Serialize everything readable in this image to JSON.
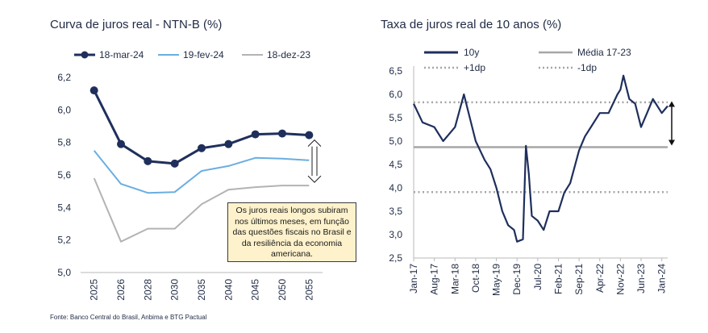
{
  "chart_data": [
    {
      "type": "line",
      "title": "Curva de juros real - NTN-B (%)",
      "categories": [
        "2025",
        "2026",
        "2028",
        "2030",
        "2035",
        "2040",
        "2045",
        "2050",
        "2055"
      ],
      "series": [
        {
          "name": "18-mar-24",
          "color": "#1f2f5c",
          "values": [
            6.12,
            5.79,
            5.685,
            5.67,
            5.765,
            5.79,
            5.85,
            5.855,
            5.845
          ]
        },
        {
          "name": "19-fev-24",
          "color": "#6aaee0",
          "values": [
            5.75,
            5.545,
            5.49,
            5.495,
            5.625,
            5.655,
            5.705,
            5.7,
            5.69
          ]
        },
        {
          "name": "18-dez-23",
          "color": "#b3b3b3",
          "values": [
            5.58,
            5.19,
            5.27,
            5.27,
            5.42,
            5.51,
            5.525,
            5.535,
            5.535
          ]
        }
      ],
      "ylim": [
        5.0,
        6.2
      ],
      "yticks": [
        "5,0",
        "5,2",
        "5,4",
        "5,6",
        "5,8",
        "6,0",
        "6,2"
      ],
      "annotation": "Os juros reais longos subiram nos últimos meses, em função das questões fiscais no Brasil e da resiliência da economia americana.",
      "source": "Fonte: Banco Central do Brasil, Anbima e BTG Pactual",
      "legend_position": "top"
    },
    {
      "type": "line",
      "title": "Taxa de juros real de 10 anos (%)",
      "x_ticks": [
        "Jan-17",
        "Aug-17",
        "Mar-18",
        "Oct-18",
        "May-19",
        "Dec-19",
        "Jul-20",
        "Feb-21",
        "Sep-21",
        "Apr-22",
        "Nov-22",
        "Jun-23",
        "Jan-24"
      ],
      "ylim": [
        2.5,
        6.5
      ],
      "yticks": [
        "2,5",
        "3,0",
        "3,5",
        "4,0",
        "4,5",
        "5,0",
        "5,5",
        "6,0",
        "6,5"
      ],
      "series": [
        {
          "name": "10y",
          "color": "#1f2f5c",
          "style": "solid",
          "x": [
            "Jan-17",
            "Apr-17",
            "Aug-17",
            "Nov-17",
            "Mar-18",
            "Jun-18",
            "Aug-18",
            "Oct-18",
            "Jan-19",
            "Mar-19",
            "May-19",
            "Jul-19",
            "Sep-19",
            "Nov-19",
            "Dec-19",
            "Feb-20",
            "Mar-20",
            "Apr-20",
            "May-20",
            "Jul-20",
            "Sep-20",
            "Nov-20",
            "Feb-21",
            "Apr-21",
            "Jun-21",
            "Sep-21",
            "Nov-21",
            "Jan-22",
            "Apr-22",
            "Jul-22",
            "Oct-22",
            "Nov-22",
            "Dec-22",
            "Feb-23",
            "Apr-23",
            "Jun-23",
            "Aug-23",
            "Oct-23",
            "Jan-24",
            "Mar-24"
          ],
          "values": [
            5.8,
            5.4,
            5.3,
            5.0,
            5.3,
            6.0,
            5.5,
            5.0,
            4.6,
            4.4,
            4.0,
            3.5,
            3.2,
            3.1,
            2.85,
            2.9,
            4.9,
            4.3,
            3.4,
            3.3,
            3.1,
            3.5,
            3.5,
            3.9,
            4.1,
            4.8,
            5.1,
            5.3,
            5.6,
            5.6,
            6.0,
            6.1,
            6.4,
            5.9,
            5.8,
            5.3,
            5.6,
            5.9,
            5.6,
            5.75
          ]
        },
        {
          "name": "Média 17-23",
          "color": "#a6a6a6",
          "style": "solid",
          "value": 4.87
        },
        {
          "name": "+1dp",
          "color": "#a6a6a6",
          "style": "dotted",
          "value": 5.83
        },
        {
          "name": "-1dp",
          "color": "#a6a6a6",
          "style": "dotted",
          "value": 3.91
        }
      ],
      "legend_position": "top"
    }
  ]
}
